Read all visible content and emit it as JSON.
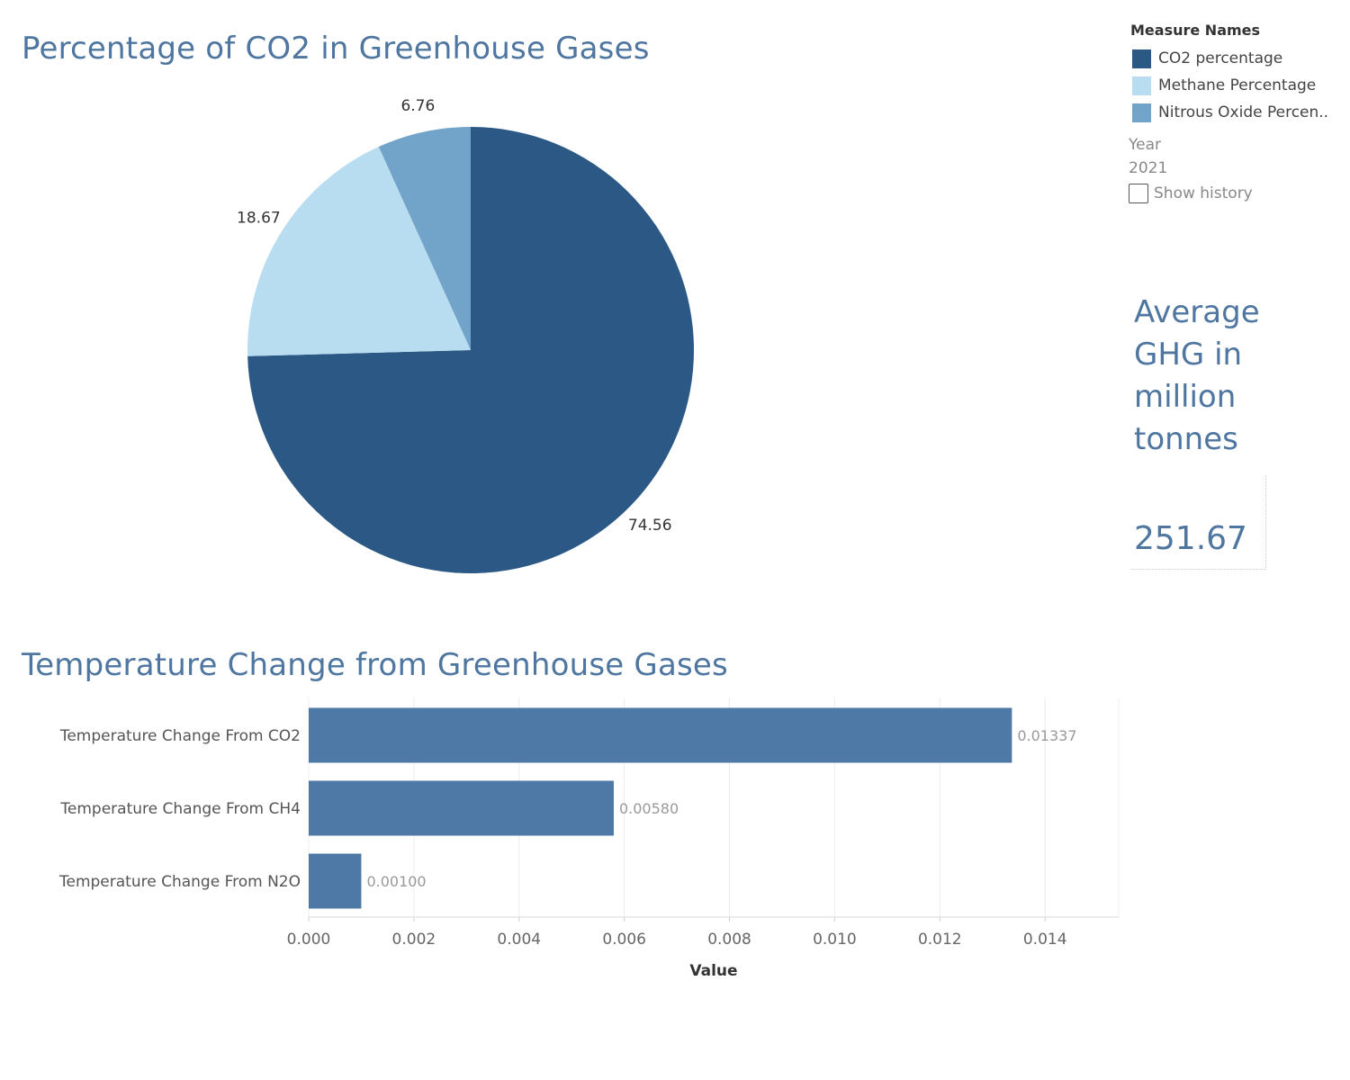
{
  "pie_title": "Percentage of CO2 in Greenhouse Gases",
  "bar_title": "Temperature Change from Greenhouse Gases",
  "legend": {
    "title": "Measure Names",
    "items": [
      {
        "label": "CO2 percentage",
        "color": "#2c5885"
      },
      {
        "label": "Methane Percentage",
        "color": "#b8ddf0"
      },
      {
        "label": "Nitrous Oxide Percen..",
        "color": "#72a4c9"
      }
    ]
  },
  "filter": {
    "label": "Year",
    "value": "2021",
    "show_history_label": "Show history",
    "show_history_checked": false
  },
  "kpi": {
    "title": "Average GHG in million tonnes",
    "value": "251.67"
  },
  "chart_data": [
    {
      "type": "pie",
      "title": "Percentage of CO2 in Greenhouse Gases",
      "slices": [
        {
          "name": "CO2 percentage",
          "value": 74.56,
          "label": "74.56",
          "color": "#2c5885"
        },
        {
          "name": "Methane Percentage",
          "value": 18.67,
          "label": "18.67",
          "color": "#b8ddf0"
        },
        {
          "name": "Nitrous Oxide Percen..",
          "value": 6.76,
          "label": "6.76",
          "color": "#72a4c9"
        }
      ]
    },
    {
      "type": "bar",
      "orientation": "horizontal",
      "title": "Temperature Change from Greenhouse Gases",
      "categories": [
        "Temperature Change From CO2",
        "Temperature Change From CH4",
        "Temperature Change From N2O"
      ],
      "values": [
        0.01337,
        0.0058,
        0.001
      ],
      "value_labels": [
        "0.01337",
        "0.00580",
        "0.00100"
      ],
      "xlabel": "Value",
      "xlim": [
        0,
        0.0154
      ],
      "ticks": [
        "0.000",
        "0.002",
        "0.004",
        "0.006",
        "0.008",
        "0.010",
        "0.012",
        "0.014"
      ],
      "grid": true,
      "bar_color": "#4e78a6"
    }
  ]
}
